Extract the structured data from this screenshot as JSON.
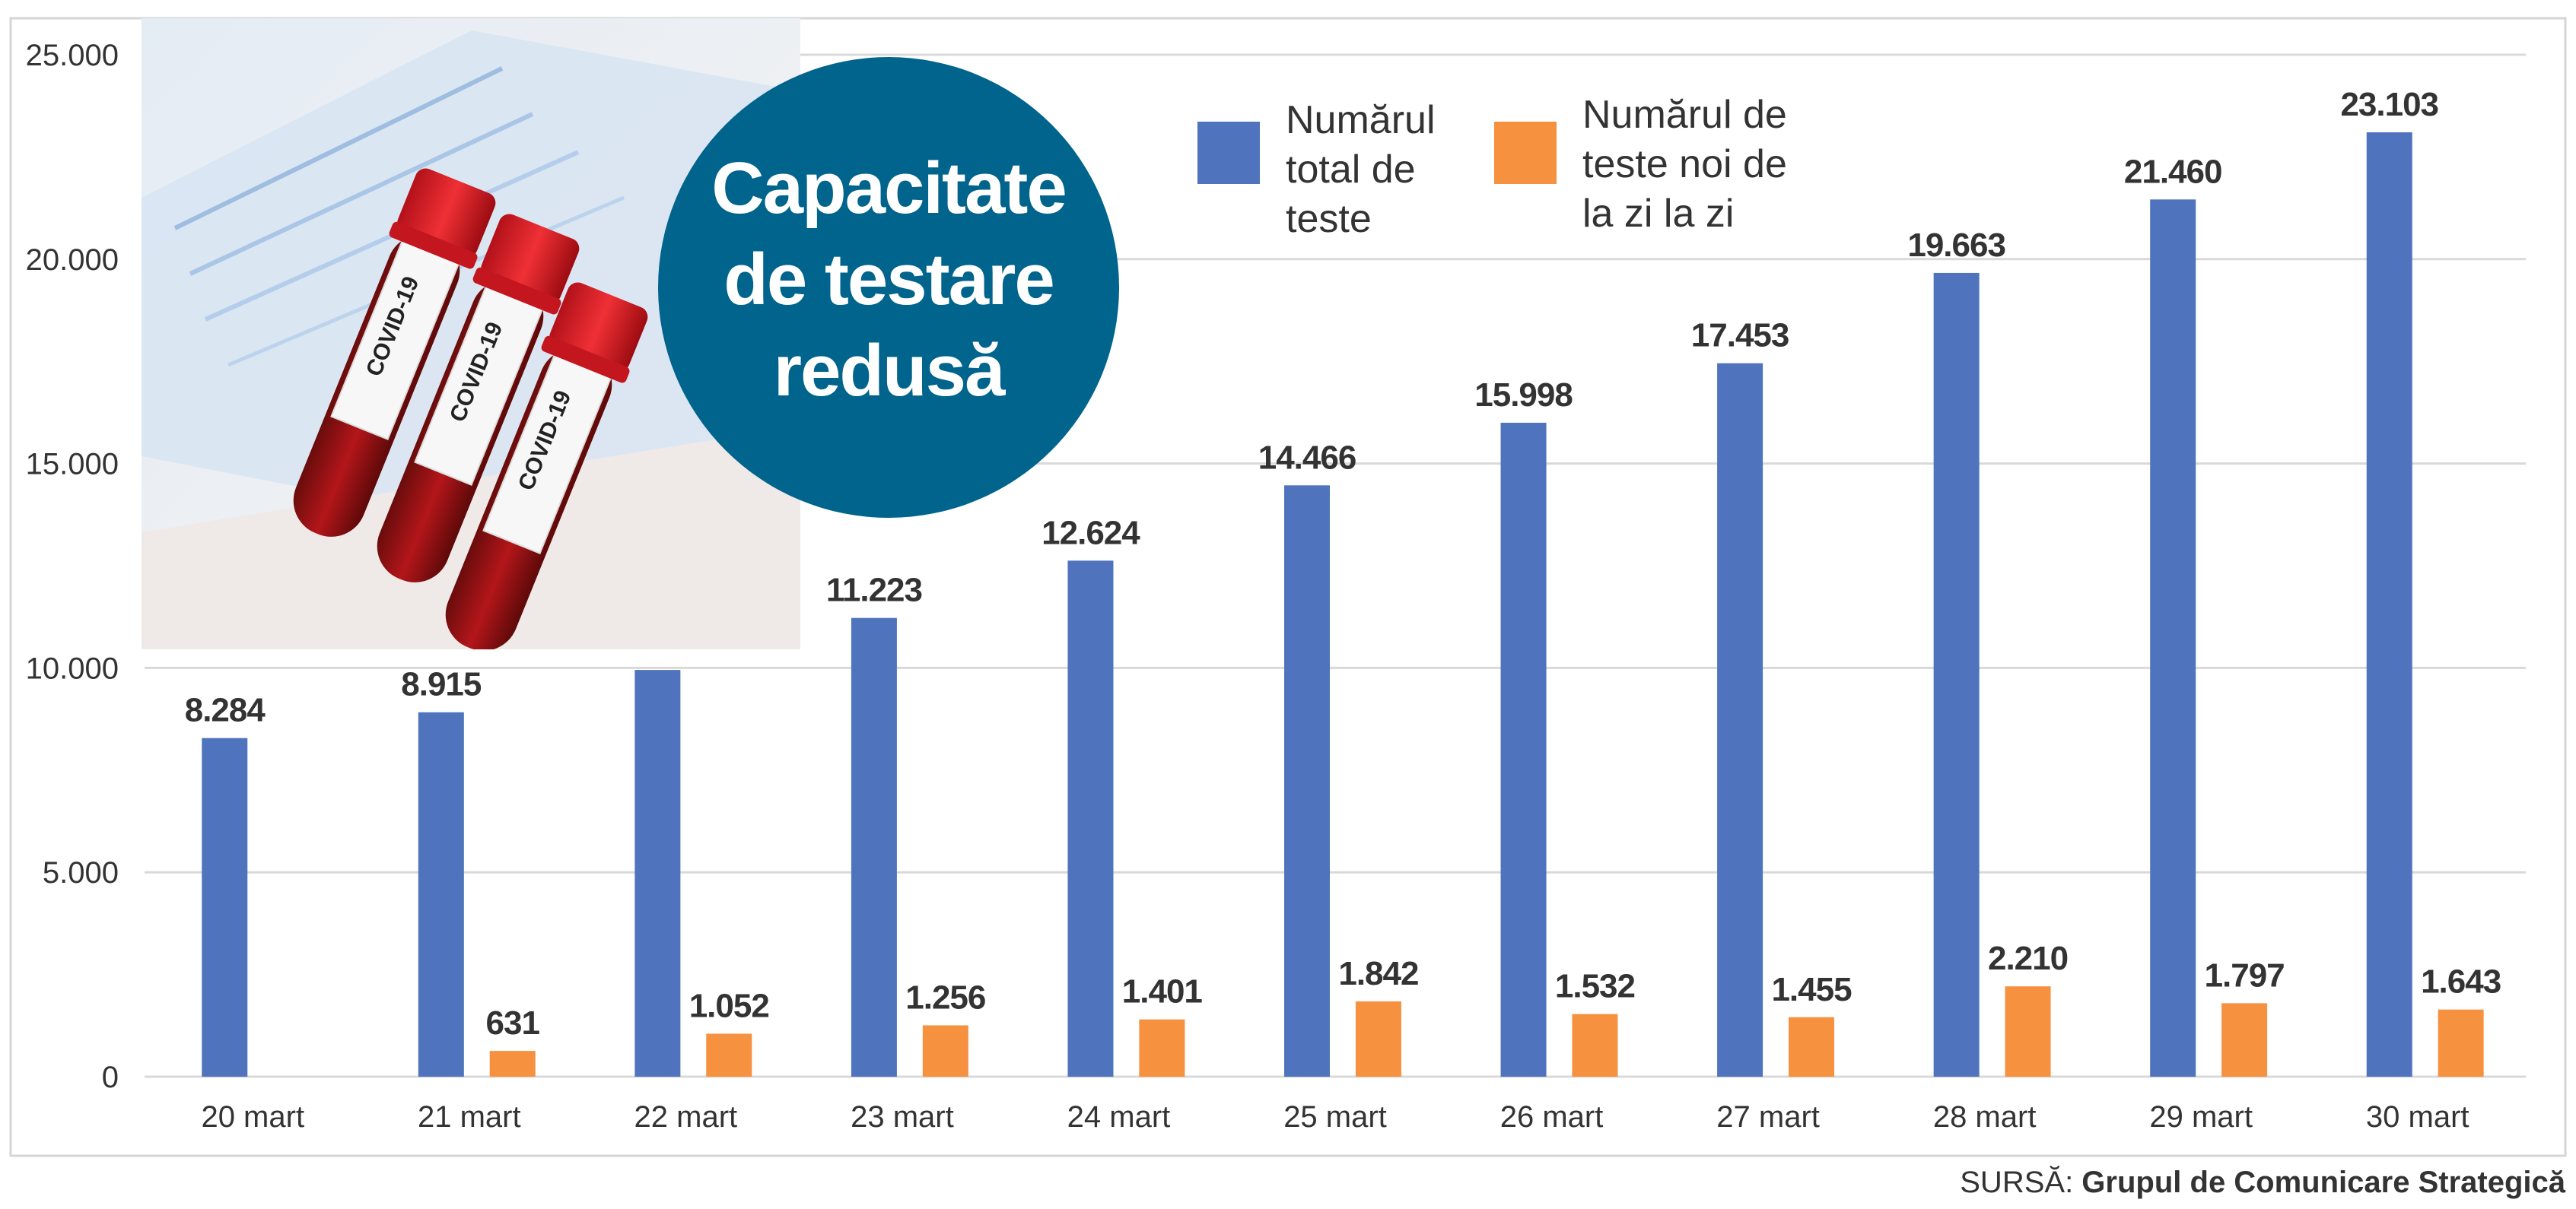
{
  "chart_data": {
    "type": "bar",
    "categories": [
      "20 mart",
      "21 mart",
      "22 mart",
      "23 mart",
      "24 mart",
      "25 mart",
      "26 mart",
      "27 mart",
      "28 mart",
      "29 mart",
      "30 mart"
    ],
    "series": [
      {
        "name_lines": [
          "Numărul",
          "total de",
          "teste"
        ],
        "color": "#4f74bd",
        "values": [
          8284,
          8915,
          9950,
          11223,
          12624,
          14466,
          15998,
          17453,
          19663,
          21460,
          23103
        ],
        "labels": [
          "8.284",
          "8.915",
          "",
          "11.223",
          "12.624",
          "14.466",
          "15.998",
          "17.453",
          "19.663",
          "21.460",
          "23.103"
        ]
      },
      {
        "name_lines": [
          "Numărul de",
          "teste noi de",
          "la zi la zi"
        ],
        "color": "#f5913f",
        "values": [
          null,
          631,
          1052,
          1256,
          1401,
          1842,
          1532,
          1455,
          2210,
          1797,
          1643
        ],
        "labels": [
          "",
          "631",
          "1.052",
          "1.256",
          "1.401",
          "1.842",
          "1.532",
          "1.455",
          "2.210",
          "1.797",
          "1.643"
        ]
      }
    ],
    "yticks": [
      0,
      5000,
      10000,
      15000,
      20000,
      25000
    ],
    "ytick_labels": [
      "0",
      "5.000",
      "10.000",
      "15.000",
      "20.000",
      "25.000"
    ],
    "ylim": [
      0,
      25000
    ],
    "grid": true,
    "legend_position": "top-center"
  },
  "badge": {
    "lines": [
      "Capacitate",
      "de testare",
      "redusă"
    ],
    "color": "#00648c"
  },
  "photo": {
    "subject": "blood-sample-tubes",
    "tube_label": "COVID-19"
  },
  "source": {
    "prefix": "SURSĂ: ",
    "name": "Grupul de Comunicare Strategică"
  }
}
